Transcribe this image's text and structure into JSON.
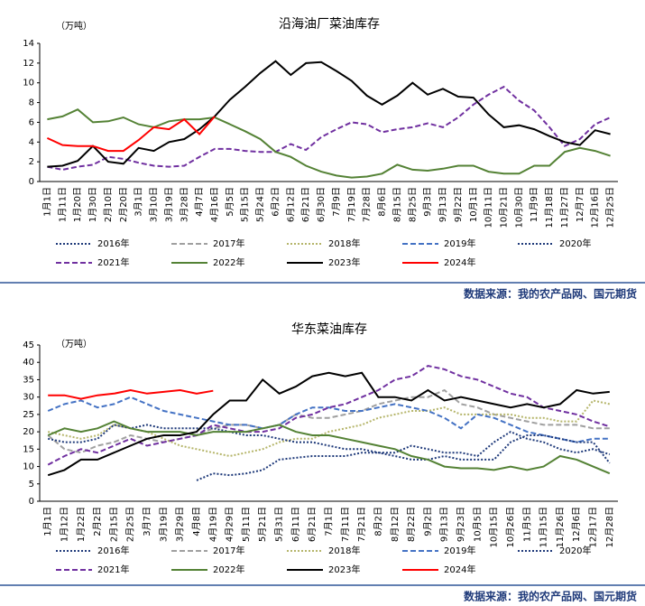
{
  "chart_data": [
    {
      "type": "line",
      "title": "沿海油厂菜油库存",
      "unit": "（万吨）",
      "source": "数据来源：我的农产品网、国元期货",
      "categories": [
        "1月1日",
        "1月11日",
        "1月20日",
        "1月30日",
        "2月10日",
        "2月20日",
        "3月1日",
        "3月10日",
        "3月19日",
        "3月28日",
        "4月7日",
        "4月16日",
        "5月5日",
        "5月15日",
        "5月24日",
        "6月2日",
        "6月12日",
        "6月21日",
        "6月30日",
        "7月9日",
        "7月19日",
        "7月28日",
        "8月6日",
        "8月15日",
        "8月25日",
        "9月3日",
        "9月13日",
        "9月22日",
        "10月1日",
        "10月11日",
        "10月21日",
        "10月30日",
        "11月9日",
        "11月18日",
        "11月27日",
        "12月7日",
        "12月16日",
        "12月25日"
      ],
      "ylim": [
        0,
        14
      ],
      "yticks": [
        0,
        2,
        4,
        6,
        8,
        10,
        12,
        14
      ],
      "series": [
        {
          "name": "2016年",
          "color": "#1f3a7a",
          "dash": "dotted",
          "values": [
            null,
            null,
            null,
            null,
            null,
            null,
            null,
            null,
            null,
            null,
            null,
            null,
            null,
            null,
            null,
            null,
            null,
            null,
            null,
            null,
            null,
            null,
            null,
            null,
            null,
            null,
            null,
            null,
            null,
            null,
            null,
            null,
            null,
            null,
            null,
            null,
            null,
            null
          ]
        },
        {
          "name": "2017年",
          "color": "#a0a0a0",
          "dash": "dashed",
          "values": [
            null,
            null,
            null,
            null,
            null,
            null,
            null,
            null,
            null,
            null,
            null,
            null,
            null,
            null,
            null,
            null,
            null,
            null,
            null,
            null,
            null,
            null,
            null,
            null,
            null,
            null,
            null,
            null,
            null,
            null,
            null,
            null,
            null,
            null,
            null,
            null,
            null,
            null
          ]
        },
        {
          "name": "2018年",
          "color": "#b5b56a",
          "dash": "dotted",
          "values": [
            null,
            null,
            null,
            null,
            null,
            null,
            null,
            null,
            null,
            null,
            null,
            null,
            null,
            null,
            null,
            null,
            null,
            null,
            null,
            null,
            null,
            null,
            null,
            null,
            null,
            null,
            null,
            null,
            null,
            null,
            null,
            null,
            null,
            null,
            null,
            null,
            null,
            null
          ]
        },
        {
          "name": "2019年",
          "color": "#4472c4",
          "dash": "dashed",
          "values": [
            null,
            null,
            null,
            null,
            null,
            null,
            null,
            null,
            null,
            null,
            null,
            null,
            null,
            null,
            null,
            null,
            null,
            null,
            null,
            null,
            null,
            null,
            null,
            null,
            null,
            null,
            null,
            null,
            null,
            null,
            null,
            null,
            null,
            null,
            null,
            null,
            null,
            null
          ]
        },
        {
          "name": "2020年",
          "color": "#1f3a7a",
          "dash": "dotted",
          "values": [
            null,
            null,
            null,
            null,
            null,
            null,
            null,
            null,
            null,
            null,
            null,
            null,
            null,
            null,
            null,
            null,
            null,
            null,
            null,
            null,
            null,
            null,
            null,
            null,
            null,
            null,
            null,
            null,
            null,
            null,
            null,
            null,
            null,
            null,
            null,
            null,
            null,
            null
          ]
        },
        {
          "name": "2021年",
          "color": "#7030a0",
          "dash": "dashed",
          "values": [
            1.5,
            1.2,
            1.5,
            1.7,
            2.5,
            2.3,
            1.9,
            1.6,
            1.5,
            1.6,
            2.5,
            3.3,
            3.3,
            3.1,
            3.0,
            3.0,
            3.8,
            3.2,
            4.5,
            5.3,
            6.0,
            5.8,
            5.0,
            5.3,
            5.5,
            5.9,
            5.5,
            6.5,
            7.8,
            8.8,
            9.6,
            8.2,
            7.2,
            5.5,
            3.6,
            4.3,
            5.8,
            6.5
          ]
        },
        {
          "name": "2022年",
          "color": "#548235",
          "dash": "solid",
          "values": [
            6.3,
            6.6,
            7.3,
            6.0,
            6.1,
            6.5,
            5.8,
            5.5,
            6.1,
            6.3,
            6.3,
            6.5,
            5.8,
            5.1,
            4.3,
            3.0,
            2.5,
            1.6,
            1.0,
            0.6,
            0.4,
            0.5,
            0.8,
            1.7,
            1.2,
            1.1,
            1.3,
            1.6,
            1.6,
            1.0,
            0.8,
            0.8,
            1.6,
            1.6,
            3.0,
            3.4,
            3.1,
            2.6
          ]
        },
        {
          "name": "2023年",
          "color": "#000000",
          "dash": "solid",
          "values": [
            1.5,
            1.6,
            2.1,
            3.6,
            2.0,
            1.8,
            3.4,
            3.1,
            4.0,
            4.3,
            5.3,
            6.6,
            8.3,
            9.6,
            11.0,
            12.2,
            10.8,
            12.0,
            12.1,
            11.2,
            10.2,
            8.7,
            7.8,
            8.7,
            10.0,
            8.8,
            9.4,
            8.6,
            8.5,
            6.8,
            5.5,
            5.7,
            5.3,
            4.6,
            4.0,
            3.7,
            5.2,
            4.8
          ]
        },
        {
          "name": "2024年",
          "color": "#ff0000",
          "dash": "solid",
          "values": [
            4.4,
            3.7,
            3.6,
            3.6,
            3.1,
            3.1,
            4.2,
            5.5,
            5.3,
            6.3,
            4.8,
            6.6,
            null,
            null,
            null,
            null,
            null,
            null,
            null,
            null,
            null,
            null,
            null,
            null,
            null,
            null,
            null,
            null,
            null,
            null,
            null,
            null,
            null,
            null,
            null,
            null,
            null,
            null
          ]
        }
      ]
    },
    {
      "type": "line",
      "title": "华东菜油库存",
      "unit": "（万吨）",
      "source": "数据来源：我的农产品网、国元期货",
      "categories": [
        "1月1日",
        "1月12日",
        "1月22日",
        "2月2日",
        "2月15日",
        "2月25日",
        "3月7日",
        "3月19日",
        "3月29日",
        "4月8日",
        "4月19日",
        "4月29日",
        "5月11日",
        "5月21日",
        "5月31日",
        "6月11日",
        "6月21日",
        "7月1日",
        "7月11日",
        "7月21日",
        "8月2日",
        "8月12日",
        "8月22日",
        "9月2日",
        "9月13日",
        "9月23日",
        "10月5日",
        "10月15日",
        "10月26日",
        "11月5日",
        "11月15日",
        "11月26日",
        "12月6日",
        "12月17日",
        "12月28日"
      ],
      "ylim": [
        0,
        45
      ],
      "yticks": [
        0,
        5,
        10,
        15,
        20,
        25,
        30,
        35,
        40,
        45
      ],
      "series": [
        {
          "name": "2016年",
          "color": "#1f3a7a",
          "dash": "dotted",
          "values": [
            null,
            null,
            null,
            null,
            null,
            null,
            null,
            null,
            null,
            6,
            8,
            7.5,
            8,
            9,
            12,
            12.5,
            13,
            13,
            13,
            14,
            14,
            14,
            16,
            15,
            14,
            14,
            13,
            17,
            20,
            18,
            17,
            15,
            14,
            15,
            13.5
          ]
        },
        {
          "name": "2017年",
          "color": "#a0a0a0",
          "dash": "dashed",
          "values": [
            19,
            15,
            14,
            16,
            17,
            19,
            18,
            17,
            18,
            19,
            21,
            22,
            22,
            21,
            22,
            25,
            24,
            24,
            25,
            26,
            28,
            29,
            30,
            30,
            32,
            28,
            27,
            25,
            24,
            23,
            22,
            22,
            22,
            21,
            21
          ]
        },
        {
          "name": "2018年",
          "color": "#b5b56a",
          "dash": "dotted",
          "values": [
            20,
            19,
            18,
            19,
            22,
            21,
            20,
            18,
            16,
            15,
            14,
            13,
            14,
            15,
            17,
            18,
            18,
            20,
            21,
            22,
            24,
            25,
            26,
            26,
            27,
            25,
            25,
            25,
            25,
            24,
            24,
            23,
            23,
            29,
            28
          ]
        },
        {
          "name": "2019年",
          "color": "#4472c4",
          "dash": "dashed",
          "values": [
            26,
            28,
            29,
            27,
            28,
            30,
            28,
            26,
            25,
            24,
            23,
            22,
            22,
            21,
            22,
            25,
            27,
            27,
            26,
            26,
            27,
            28,
            27,
            26,
            24,
            21,
            25,
            24,
            22,
            20,
            19,
            18,
            17,
            18,
            18
          ]
        },
        {
          "name": "2020年",
          "color": "#1f3a7a",
          "dash": "dotted",
          "values": [
            18,
            17,
            17,
            18,
            22,
            21,
            22,
            21,
            21,
            21,
            21,
            20,
            19,
            19,
            18,
            17,
            17,
            16,
            15,
            15,
            14,
            13,
            12,
            12,
            13,
            12,
            12,
            12,
            17,
            19,
            19,
            18,
            17,
            17,
            11
          ]
        },
        {
          "name": "2021年",
          "color": "#7030a0",
          "dash": "dashed",
          "values": [
            10.5,
            13,
            15,
            14,
            16,
            18,
            16,
            17,
            18,
            19,
            22,
            21,
            20,
            20,
            21,
            24,
            25,
            27,
            28,
            30,
            32,
            35,
            36,
            39,
            38,
            36,
            35,
            33,
            31,
            30,
            27,
            26,
            25,
            23,
            21.5
          ]
        },
        {
          "name": "2022年",
          "color": "#548235",
          "dash": "solid",
          "values": [
            19,
            21,
            20,
            21,
            23,
            21,
            20,
            20,
            20,
            19,
            20,
            20,
            20,
            21,
            22,
            20,
            19,
            19,
            18,
            17,
            16,
            15,
            13,
            12,
            10,
            9.5,
            9.5,
            9,
            10,
            9,
            10,
            13,
            12,
            10,
            8
          ]
        },
        {
          "name": "2023年",
          "color": "#000000",
          "dash": "solid",
          "values": [
            7.5,
            9,
            12,
            12,
            14,
            16,
            18,
            19,
            19,
            20,
            25,
            29,
            29,
            35,
            31,
            33,
            36,
            37,
            36,
            37,
            30,
            30,
            29,
            32,
            29,
            30,
            29,
            28,
            27,
            28,
            27,
            28,
            32,
            31,
            31.5
          ]
        },
        {
          "name": "2024年",
          "color": "#ff0000",
          "dash": "solid",
          "values": [
            30.5,
            30.5,
            29.5,
            30.5,
            31,
            32,
            31,
            31.5,
            32,
            31,
            31.8,
            null,
            null,
            null,
            null,
            null,
            null,
            null,
            null,
            null,
            null,
            null,
            null,
            null,
            null,
            null,
            null,
            null,
            null,
            null,
            null,
            null,
            null,
            null,
            null
          ]
        }
      ]
    }
  ]
}
